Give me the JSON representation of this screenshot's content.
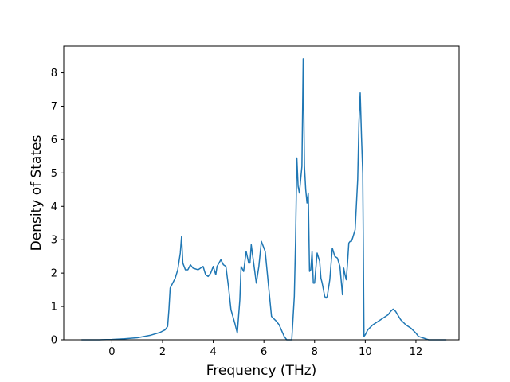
{
  "chart_data": {
    "type": "line",
    "title": "",
    "xlabel": "Frequency (THz)",
    "ylabel": "Density of States",
    "xlim": [
      -1.9,
      13.7
    ],
    "ylim": [
      0,
      8.8
    ],
    "xticks": [
      0,
      2,
      4,
      6,
      8,
      10,
      12
    ],
    "yticks": [
      0,
      1,
      2,
      3,
      4,
      5,
      6,
      7,
      8
    ],
    "grid": false,
    "legend": "none",
    "line_color": "#1f77b4",
    "series": [
      {
        "x": [
          -1.2,
          -0.5,
          0,
          0.5,
          1.0,
          1.5,
          1.9,
          2.1,
          2.2,
          2.25,
          2.3,
          2.5,
          2.6,
          2.7,
          2.75,
          2.8,
          2.9,
          3.0,
          3.1,
          3.2,
          3.4,
          3.5,
          3.6,
          3.7,
          3.8,
          3.9,
          4.0,
          4.1,
          4.15,
          4.3,
          4.4,
          4.5,
          4.6,
          4.7,
          4.85,
          4.95,
          5.05,
          5.1,
          5.2,
          5.3,
          5.4,
          5.45,
          5.5,
          5.7,
          5.8,
          5.9,
          5.95,
          6.05,
          6.3,
          6.5,
          6.6,
          6.8,
          6.9,
          7.0,
          7.1,
          7.2,
          7.25,
          7.3,
          7.35,
          7.4,
          7.45,
          7.5,
          7.55,
          7.6,
          7.65,
          7.7,
          7.75,
          7.8,
          7.85,
          7.9,
          7.95,
          8.0,
          8.1,
          8.2,
          8.25,
          8.3,
          8.35,
          8.4,
          8.45,
          8.5,
          8.6,
          8.7,
          8.8,
          8.9,
          9.0,
          9.1,
          9.15,
          9.2,
          9.25,
          9.3,
          9.35,
          9.4,
          9.45,
          9.5,
          9.6,
          9.7,
          9.75,
          9.8,
          9.85,
          9.9,
          9.95,
          10.0,
          10.1,
          10.3,
          10.5,
          10.7,
          10.9,
          11.0,
          11.1,
          11.2,
          11.4,
          11.6,
          11.8,
          12.0,
          12.1,
          12.5,
          13.2
        ],
        "y": [
          0,
          0,
          0.01,
          0.03,
          0.06,
          0.13,
          0.22,
          0.3,
          0.4,
          0.9,
          1.55,
          1.85,
          2.1,
          2.6,
          3.1,
          2.3,
          2.1,
          2.1,
          2.25,
          2.15,
          2.1,
          2.15,
          2.2,
          1.95,
          1.9,
          2.0,
          2.2,
          1.95,
          2.2,
          2.4,
          2.25,
          2.2,
          1.6,
          0.9,
          0.5,
          0.2,
          1.2,
          2.2,
          2.05,
          2.65,
          2.3,
          2.3,
          2.85,
          1.7,
          2.2,
          2.95,
          2.85,
          2.65,
          0.7,
          0.55,
          0.45,
          0.1,
          0,
          0,
          0,
          1.3,
          3.0,
          5.45,
          4.6,
          4.4,
          4.8,
          5.2,
          8.42,
          5.2,
          4.5,
          4.1,
          4.4,
          2.05,
          2.1,
          2.65,
          1.7,
          1.7,
          2.6,
          2.35,
          1.85,
          1.7,
          1.5,
          1.3,
          1.25,
          1.3,
          1.8,
          2.75,
          2.5,
          2.45,
          2.2,
          1.35,
          2.15,
          1.95,
          1.8,
          2.3,
          2.9,
          2.95,
          2.95,
          3.05,
          3.3,
          4.8,
          6.5,
          7.4,
          6.1,
          5.0,
          0.1,
          0.15,
          0.3,
          0.45,
          0.55,
          0.65,
          0.75,
          0.85,
          0.92,
          0.85,
          0.6,
          0.45,
          0.35,
          0.2,
          0.1,
          0,
          0
        ]
      }
    ]
  }
}
